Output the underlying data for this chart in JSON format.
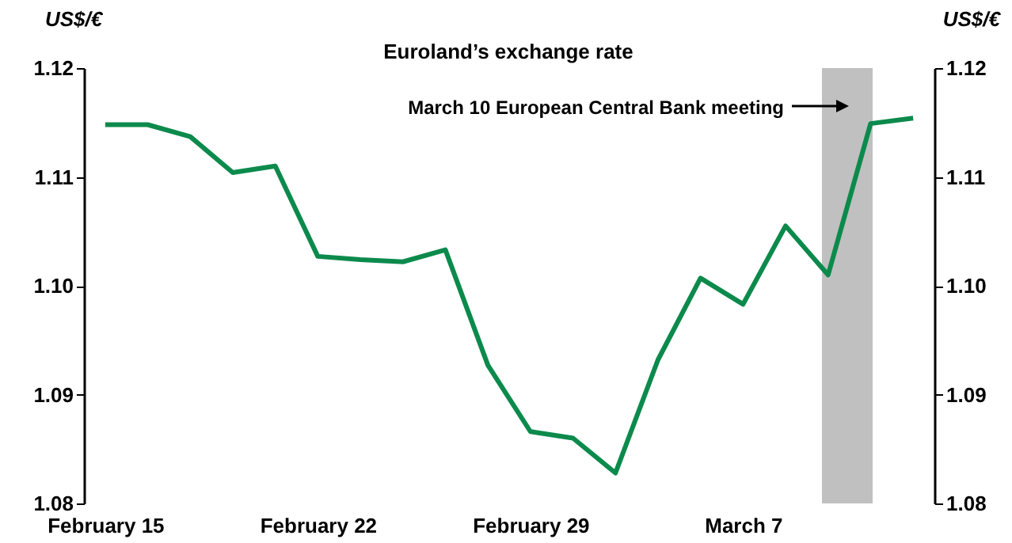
{
  "chart_data": {
    "type": "line",
    "title": "Euroland’s exchange rate",
    "ylabel": "US$/€",
    "y2label": "US$/€",
    "categories": [
      "February 15",
      null,
      null,
      null,
      null,
      "February 22",
      null,
      null,
      null,
      null,
      "February 29",
      null,
      null,
      null,
      null,
      "March 7",
      null,
      null,
      null,
      null
    ],
    "series": [
      {
        "color": "#0b8a4c",
        "values": [
          1.1148,
          1.1148,
          1.1137,
          1.1104,
          1.111,
          1.1027,
          1.1024,
          1.1022,
          1.1033,
          1.0927,
          1.0866,
          1.086,
          1.0828,
          1.0932,
          1.1007,
          1.0983,
          1.1055,
          1.101,
          1.1149,
          1.1154
        ]
      }
    ],
    "ylim": [
      1.08,
      1.12
    ],
    "yticks": [
      1.08,
      1.09,
      {
        "value": 1.1,
        "label": "1.10"
      },
      1.11,
      1.12
    ],
    "y2lim": [
      1.08,
      1.12
    ],
    "y2ticks": [
      1.08,
      1.09,
      {
        "value": 1.1,
        "label": "1.10"
      },
      1.11,
      1.12
    ],
    "annotations": [
      "March 10 European Central Bank meeting"
    ],
    "grid": false,
    "marker": "none",
    "line_style": "solid"
  }
}
